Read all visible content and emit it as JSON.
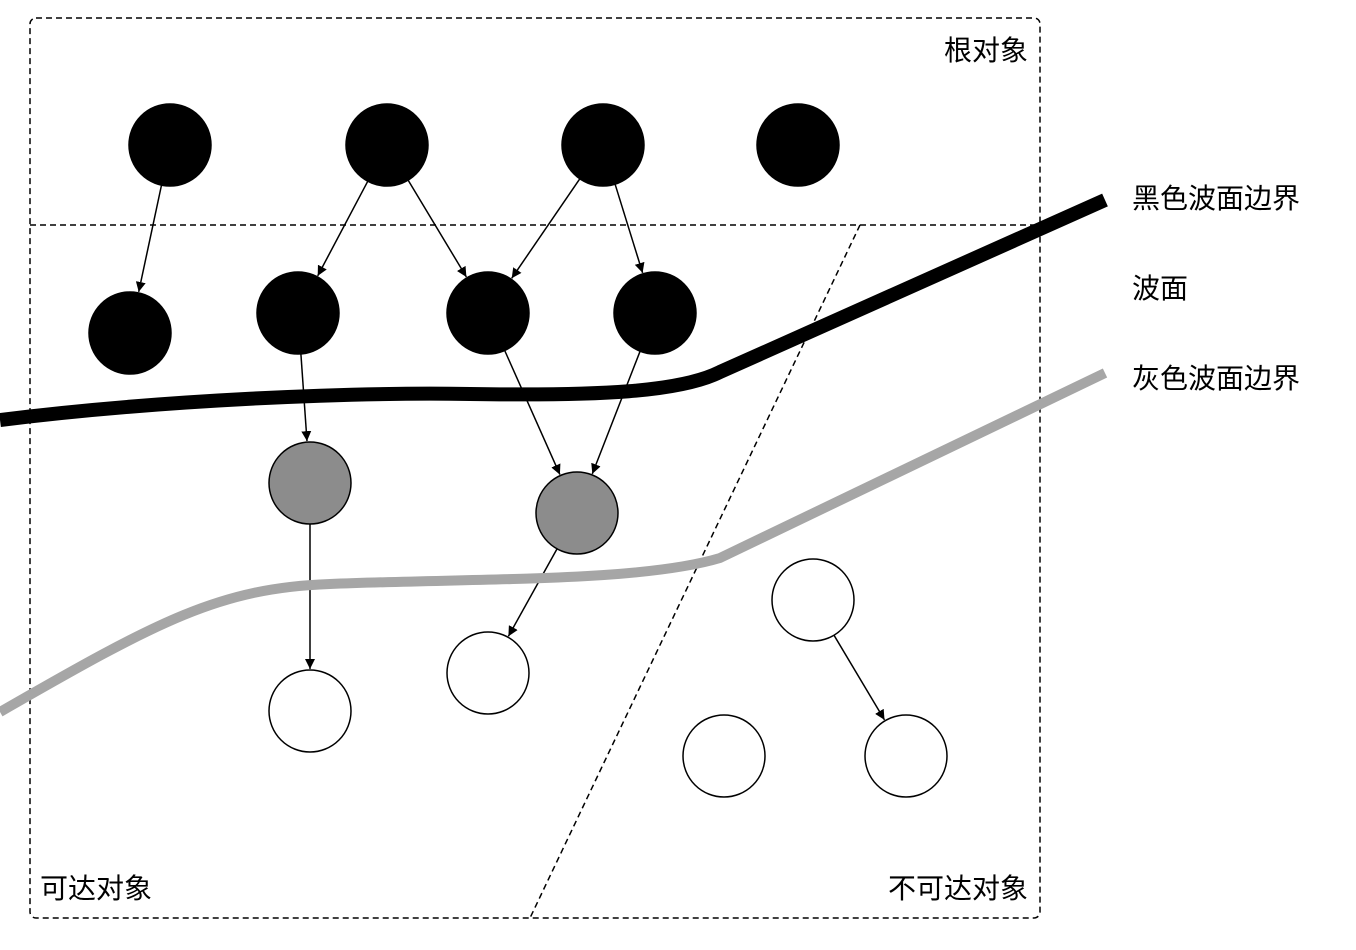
{
  "labels": {
    "root_objects": "根对象",
    "reachable_objects": "可达对象",
    "unreachable_objects": "不可达对象",
    "black_wavefront_boundary": "黑色波面边界",
    "wavefront": "波面",
    "gray_wavefront_boundary": "灰色波面边界"
  },
  "colors": {
    "black_node": "#000000",
    "gray_node": "#8c8c8c",
    "white_node": "#ffffff",
    "black_boundary": "#000000",
    "gray_boundary": "#a6a6a6",
    "stroke": "#000000"
  },
  "nodes": [
    {
      "id": "r1",
      "state": "black",
      "group": "root"
    },
    {
      "id": "r2",
      "state": "black",
      "group": "root"
    },
    {
      "id": "r3",
      "state": "black",
      "group": "root"
    },
    {
      "id": "r4",
      "state": "black",
      "group": "root"
    },
    {
      "id": "b1",
      "state": "black",
      "group": "reachable"
    },
    {
      "id": "b2",
      "state": "black",
      "group": "reachable"
    },
    {
      "id": "b3",
      "state": "black",
      "group": "reachable"
    },
    {
      "id": "b4",
      "state": "black",
      "group": "reachable"
    },
    {
      "id": "g1",
      "state": "gray",
      "group": "reachable"
    },
    {
      "id": "g2",
      "state": "gray",
      "group": "reachable"
    },
    {
      "id": "w1",
      "state": "white",
      "group": "reachable"
    },
    {
      "id": "w2",
      "state": "white",
      "group": "reachable"
    },
    {
      "id": "u1",
      "state": "white",
      "group": "unreachable"
    },
    {
      "id": "u2",
      "state": "white",
      "group": "unreachable"
    },
    {
      "id": "u3",
      "state": "white",
      "group": "unreachable"
    }
  ],
  "edges": [
    {
      "from": "r1",
      "to": "b1"
    },
    {
      "from": "r2",
      "to": "b2"
    },
    {
      "from": "r2",
      "to": "b3"
    },
    {
      "from": "r3",
      "to": "b3"
    },
    {
      "from": "r3",
      "to": "b4"
    },
    {
      "from": "b2",
      "to": "g1"
    },
    {
      "from": "b3",
      "to": "g2"
    },
    {
      "from": "b4",
      "to": "g2"
    },
    {
      "from": "g1",
      "to": "w1"
    },
    {
      "from": "g2",
      "to": "w2"
    },
    {
      "from": "u1",
      "to": "u3"
    }
  ]
}
